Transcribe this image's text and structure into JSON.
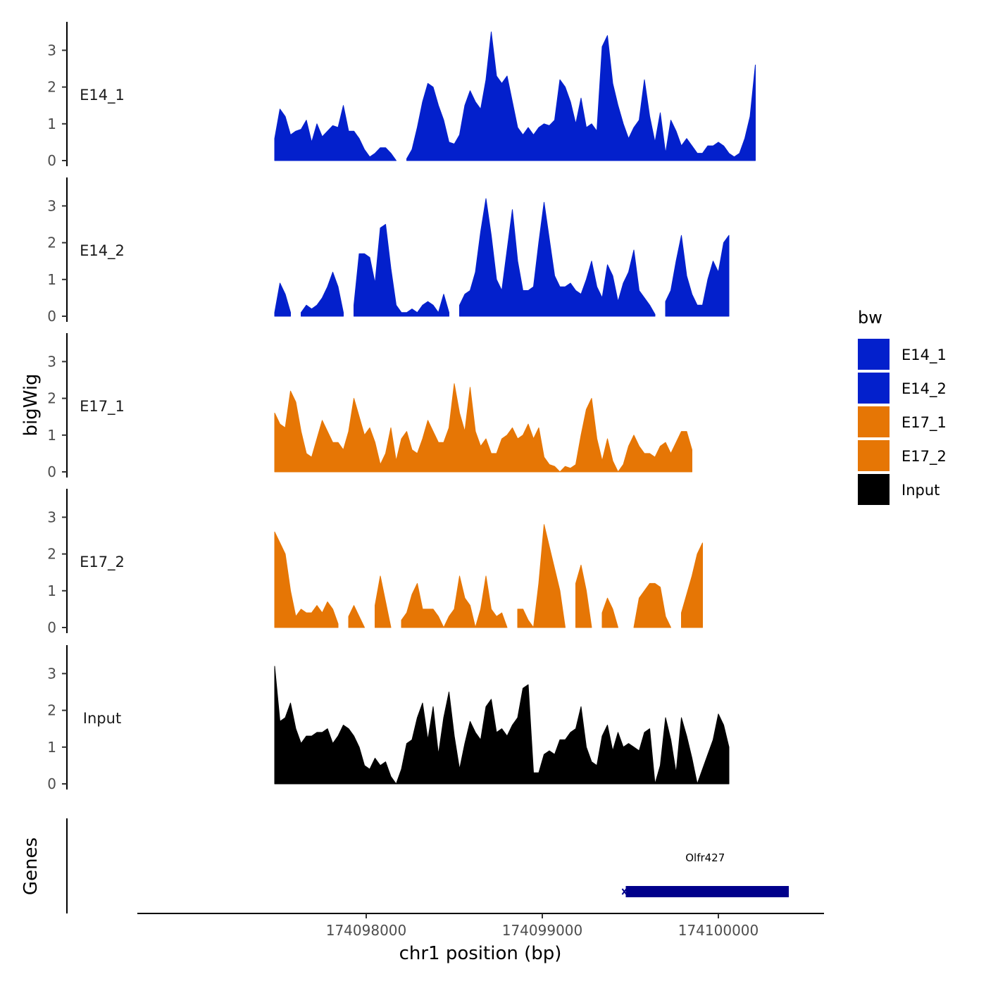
{
  "chart_data": {
    "type": "area",
    "description_title": "",
    "xlabel": "chr1 position (bp)",
    "ylabel": "bigWig",
    "genes_label": "Genes",
    "xlim": [
      174096700,
      174100600
    ],
    "ylim": [
      0,
      3.7
    ],
    "x_ticks": [
      174098000,
      174099000,
      174100000
    ],
    "x_tick_labels": [
      "174098000",
      "174099000",
      "174100000"
    ],
    "y_ticks": [
      0,
      1,
      2,
      3
    ],
    "y_tick_labels": [
      "0",
      "1",
      "2",
      "3"
    ],
    "legend": {
      "title": "bw",
      "placement": "right",
      "entries": [
        {
          "label": "E14_1",
          "color": "#0320CC"
        },
        {
          "label": "E14_2",
          "color": "#0320CC"
        },
        {
          "label": "E17_1",
          "color": "#E67605"
        },
        {
          "label": "E17_2",
          "color": "#E67605"
        },
        {
          "label": "Input",
          "color": "#000000"
        }
      ]
    },
    "x_start": 174097480,
    "x_step": 30,
    "series": [
      {
        "name": "E14_1",
        "color": "#0320CC",
        "values": [
          0.6,
          1.4,
          1.2,
          0.7,
          0.8,
          0.85,
          1.1,
          0.5,
          1.0,
          0.65,
          0.8,
          0.95,
          0.9,
          1.5,
          0.8,
          0.8,
          0.6,
          0.3,
          0.1,
          0.2,
          0.35,
          0.35,
          0.2,
          0.0,
          null,
          0.05,
          0.3,
          0.9,
          1.6,
          2.1,
          2.0,
          1.5,
          1.1,
          0.5,
          0.45,
          0.7,
          1.5,
          1.9,
          1.6,
          1.4,
          2.2,
          3.5,
          2.3,
          2.1,
          2.3,
          1.6,
          0.9,
          0.7,
          0.9,
          0.7,
          0.9,
          1.0,
          0.95,
          1.1,
          2.2,
          2.0,
          1.6,
          1.0,
          1.7,
          0.9,
          1.0,
          0.8,
          3.1,
          3.4,
          2.1,
          1.5,
          1.0,
          0.6,
          0.9,
          1.1,
          2.2,
          1.2,
          0.5,
          1.3,
          0.2,
          1.1,
          0.8,
          0.4,
          0.6,
          0.4,
          0.2,
          0.2,
          0.4,
          0.4,
          0.5,
          0.4,
          0.2,
          0.1,
          0.2,
          0.6,
          1.2,
          2.6
        ]
      },
      {
        "name": "E14_2",
        "color": "#0320CC",
        "values": [
          0.1,
          0.9,
          0.6,
          0.1,
          null,
          0.1,
          0.3,
          0.2,
          0.3,
          0.5,
          0.8,
          1.2,
          0.8,
          0.1,
          null,
          0.3,
          1.7,
          1.7,
          1.6,
          0.9,
          2.4,
          2.5,
          1.3,
          0.3,
          0.1,
          0.1,
          0.2,
          0.1,
          0.3,
          0.4,
          0.3,
          0.1,
          0.6,
          0.1,
          null,
          0.3,
          0.6,
          0.7,
          1.2,
          2.3,
          3.2,
          2.2,
          1.0,
          0.7,
          1.8,
          2.9,
          1.5,
          0.7,
          0.7,
          0.8,
          2.0,
          3.1,
          2.1,
          1.1,
          0.8,
          0.8,
          0.9,
          0.7,
          0.6,
          1.0,
          1.5,
          0.8,
          0.5,
          1.4,
          1.1,
          0.4,
          0.9,
          1.2,
          1.8,
          0.7,
          0.5,
          0.3,
          0.05,
          null,
          0.4,
          0.7,
          1.5,
          2.2,
          1.1,
          0.6,
          0.3,
          0.3,
          1.0,
          1.5,
          1.2,
          2.0,
          2.2
        ]
      },
      {
        "name": "E17_1",
        "color": "#E67605",
        "values": [
          1.6,
          1.3,
          1.2,
          2.2,
          1.9,
          1.1,
          0.5,
          0.4,
          0.9,
          1.4,
          1.1,
          0.8,
          0.8,
          0.6,
          1.1,
          2.0,
          1.5,
          1.0,
          1.2,
          0.8,
          0.2,
          0.5,
          1.2,
          0.3,
          0.9,
          1.1,
          0.6,
          0.5,
          0.9,
          1.4,
          1.1,
          0.8,
          0.8,
          1.2,
          2.4,
          1.6,
          1.1,
          2.3,
          1.1,
          0.7,
          0.9,
          0.5,
          0.5,
          0.9,
          1.0,
          1.2,
          0.9,
          1.0,
          1.3,
          0.9,
          1.2,
          0.4,
          0.2,
          0.15,
          0.0,
          0.15,
          0.1,
          0.2,
          1.0,
          1.7,
          2.0,
          0.9,
          0.3,
          0.9,
          0.3,
          0.0,
          0.2,
          0.7,
          1.0,
          0.7,
          0.5,
          0.5,
          0.4,
          0.7,
          0.8,
          0.5,
          0.8,
          1.1,
          1.1,
          0.6
        ]
      },
      {
        "name": "E17_2",
        "color": "#E67605",
        "values": [
          2.6,
          2.3,
          2.0,
          1.0,
          0.3,
          0.5,
          0.4,
          0.4,
          0.6,
          0.4,
          0.7,
          0.5,
          0.1,
          null,
          0.3,
          0.6,
          0.3,
          0.0,
          null,
          0.6,
          1.4,
          0.7,
          0.0,
          null,
          0.2,
          0.4,
          0.9,
          1.2,
          0.5,
          0.5,
          0.5,
          0.3,
          0.0,
          0.3,
          0.5,
          1.4,
          0.8,
          0.6,
          0.0,
          0.5,
          1.4,
          0.5,
          0.3,
          0.4,
          0.0,
          null,
          0.5,
          0.5,
          0.2,
          0.0,
          1.2,
          2.8,
          2.2,
          1.6,
          1.0,
          0.0,
          null,
          1.2,
          1.7,
          1.0,
          0.0,
          null,
          0.4,
          0.8,
          0.5,
          0.0,
          null,
          null,
          0.0,
          0.8,
          1.0,
          1.2,
          1.2,
          1.1,
          0.3,
          0.0,
          null,
          0.4,
          0.9,
          1.4,
          2.0,
          2.3
        ]
      },
      {
        "name": "Input",
        "color": "#000000",
        "values": [
          3.2,
          1.7,
          1.8,
          2.2,
          1.5,
          1.1,
          1.3,
          1.3,
          1.4,
          1.4,
          1.5,
          1.1,
          1.3,
          1.6,
          1.5,
          1.3,
          1.0,
          0.5,
          0.4,
          0.7,
          0.5,
          0.6,
          0.2,
          0.0,
          0.4,
          1.1,
          1.2,
          1.8,
          2.2,
          1.2,
          2.1,
          0.8,
          1.8,
          2.5,
          1.3,
          0.4,
          1.1,
          1.7,
          1.4,
          1.2,
          2.1,
          2.3,
          1.4,
          1.5,
          1.3,
          1.6,
          1.8,
          2.6,
          2.7,
          0.3,
          0.3,
          0.8,
          0.9,
          0.8,
          1.2,
          1.2,
          1.4,
          1.5,
          2.1,
          1.0,
          0.6,
          0.5,
          1.3,
          1.6,
          0.9,
          1.4,
          1.0,
          1.1,
          1.0,
          0.9,
          1.4,
          1.5,
          0.0,
          0.5,
          1.8,
          1.2,
          0.3,
          1.8,
          1.3,
          0.7,
          0.0,
          0.4,
          0.8,
          1.2,
          1.9,
          1.6,
          1.0
        ]
      }
    ],
    "genes": [
      {
        "name": "Olfr427",
        "start": 174099450,
        "end": 174100400,
        "strand": "-",
        "color": "#00008B"
      }
    ]
  }
}
